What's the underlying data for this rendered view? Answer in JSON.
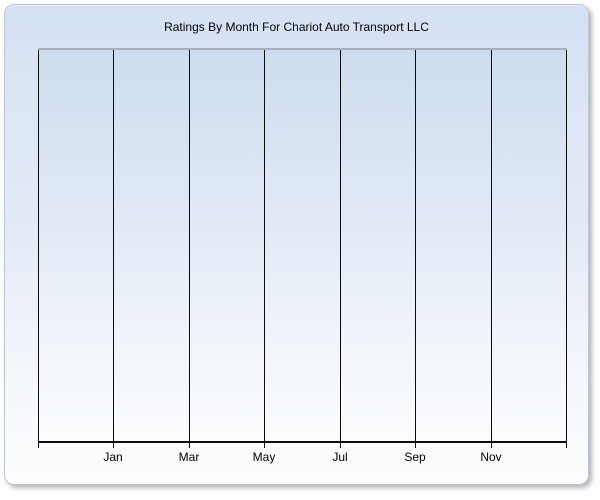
{
  "chart_data": {
    "type": "line",
    "title": "Ratings By Month For Chariot Auto Transport LLC",
    "x_tick_labels": [
      "Jan",
      "Mar",
      "May",
      "Jul",
      "Sep",
      "Nov"
    ],
    "y_tick_labels": [],
    "series": [],
    "layout": {
      "vertical_gridlines": 8,
      "horizontal_gridlines": 0,
      "first_labeled_gridline_index": 1,
      "labeled_gridline_step_months": 2,
      "legend": "none",
      "plot_empty": true
    }
  },
  "colors": {
    "panel_background_top": "#d4e1f3",
    "panel_background_bottom": "#fdfdfe",
    "plot_background_top": "#cddcf0",
    "plot_background_bottom": "#fbfdfe",
    "panel_border": "#b9c4d4",
    "plot_top_border": "#a8b0bd",
    "gridline": "#0c0c0c",
    "axis": "#0c0c0c",
    "text": "#000000",
    "page_background": "#ffffff"
  }
}
